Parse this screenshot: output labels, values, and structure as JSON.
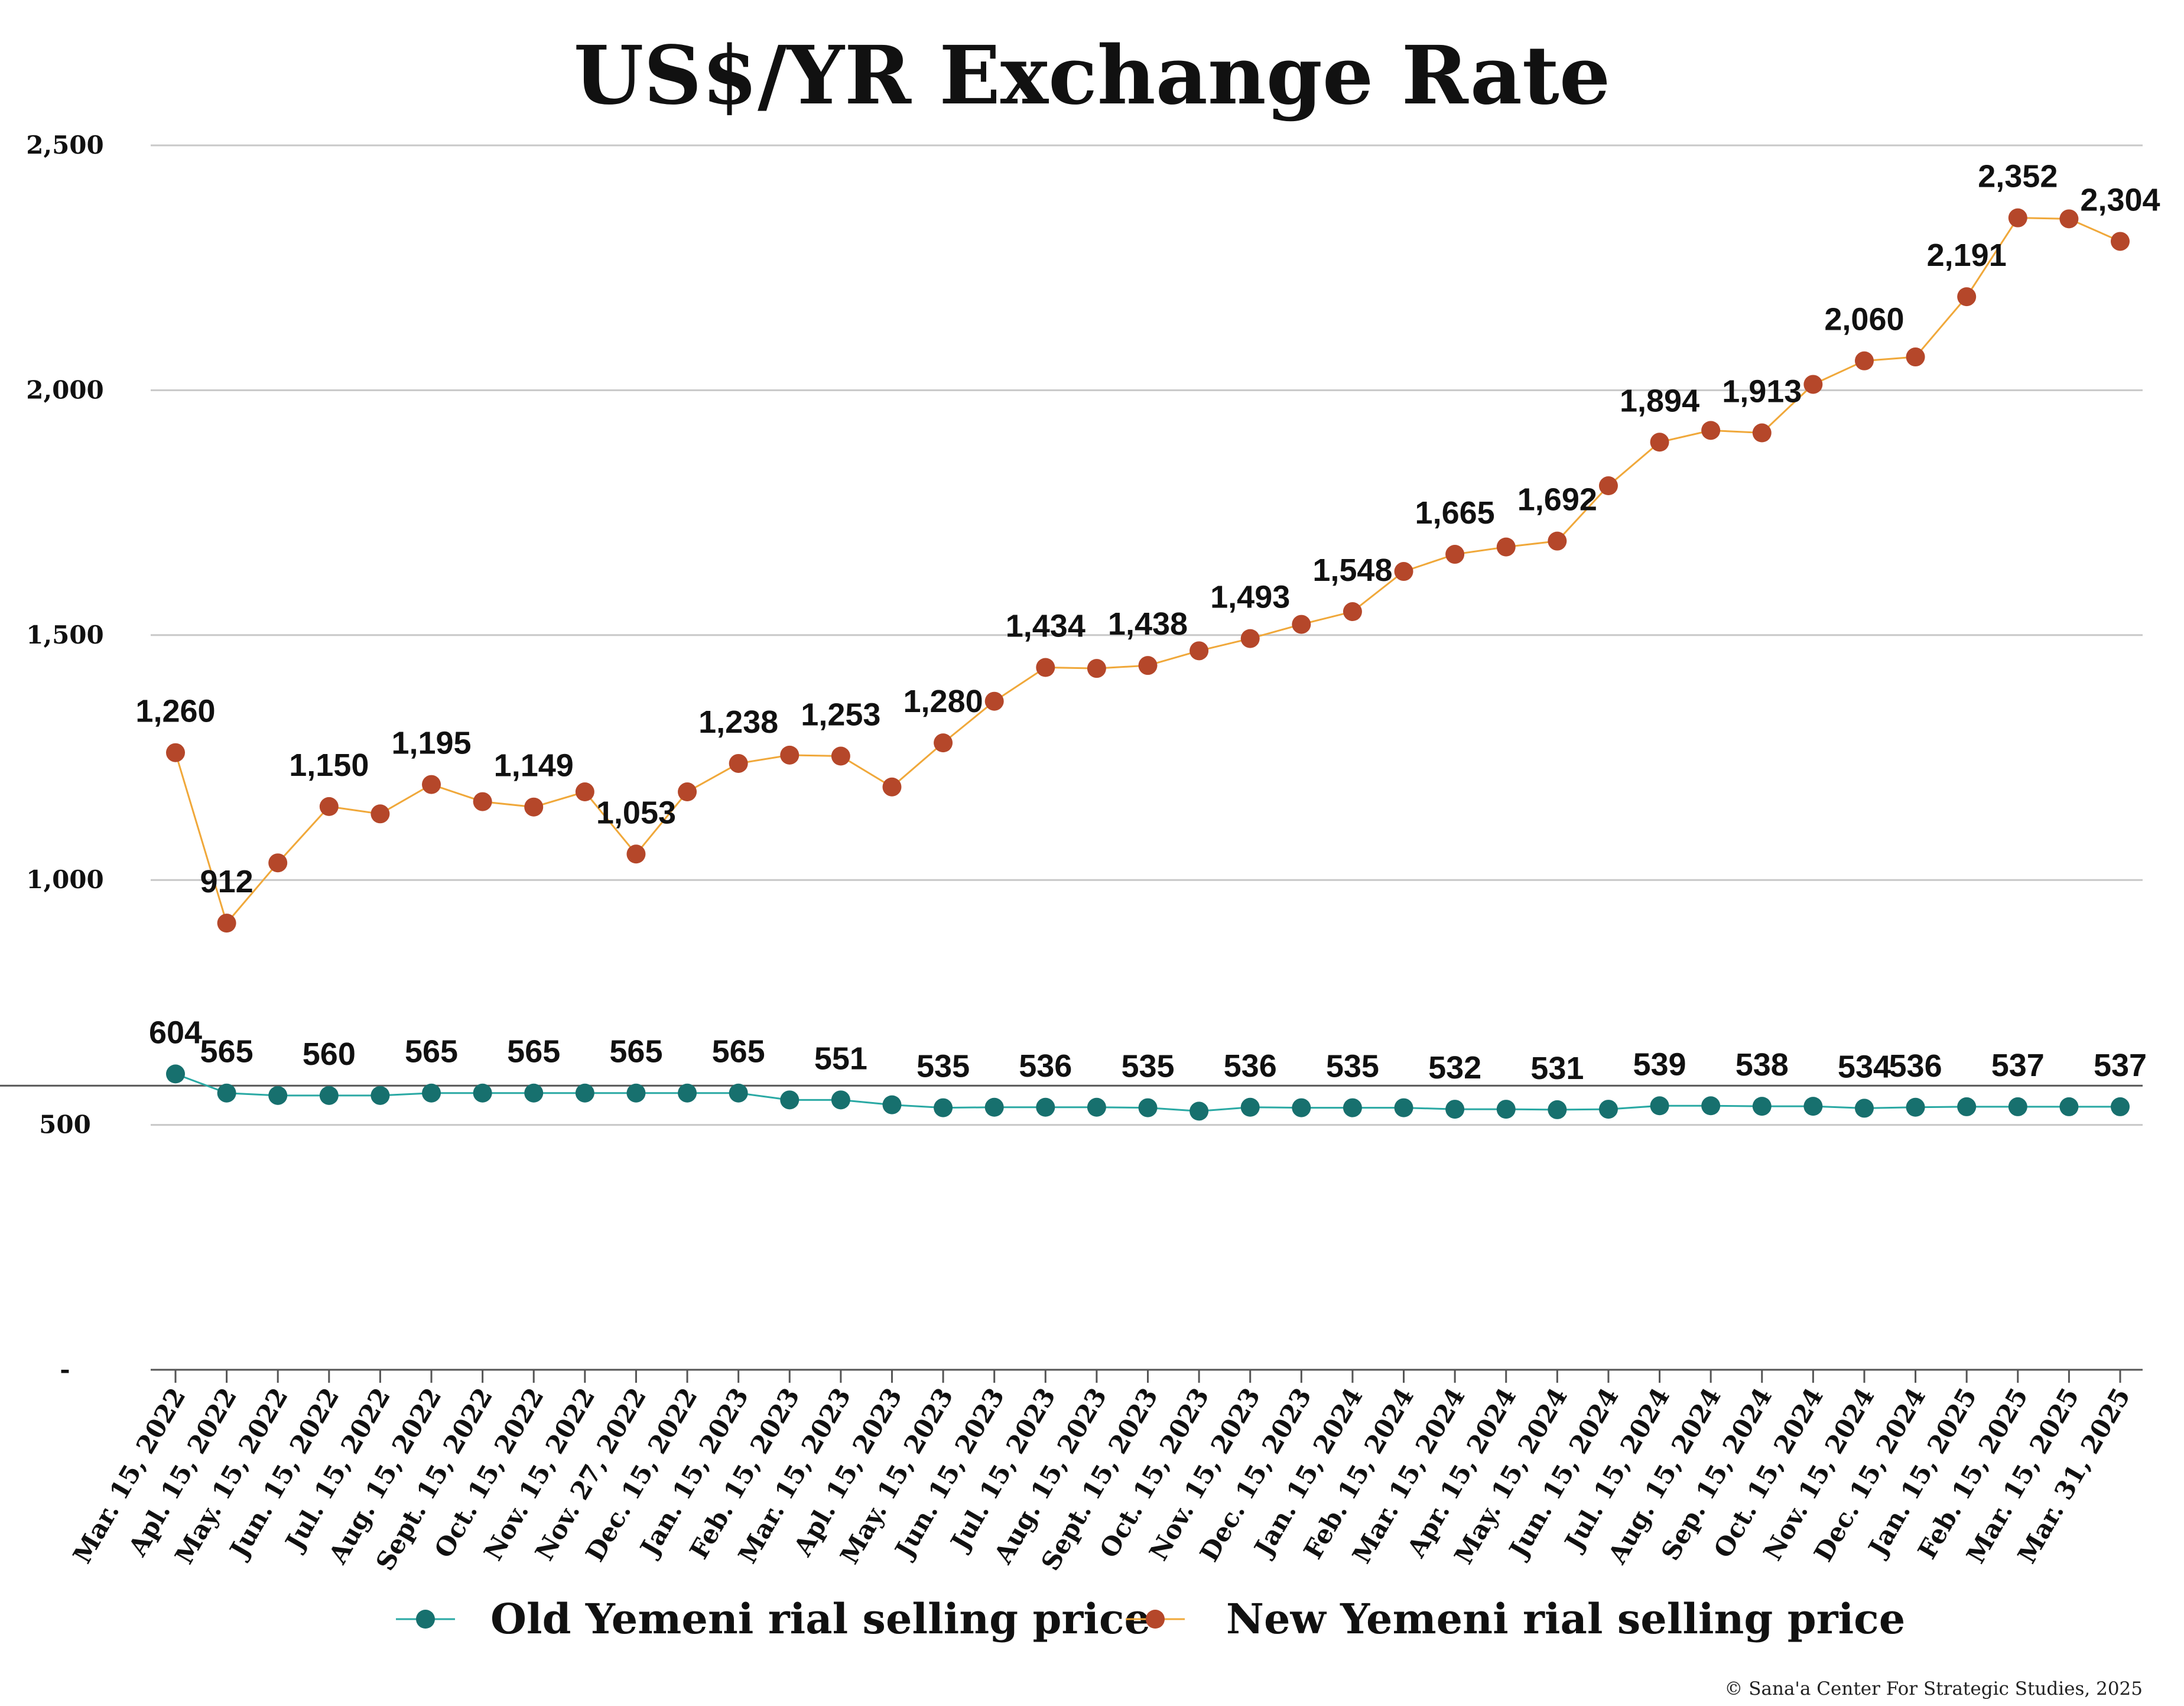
{
  "chart_data": {
    "type": "line",
    "title": "US$/YR Exchange Rate",
    "xlabel": "",
    "ylabel": "",
    "ylim": [
      0,
      2500
    ],
    "y_ticks": [
      {
        "value": 0,
        "label": "-"
      },
      {
        "value": 500,
        "label": "500"
      },
      {
        "value": 1000,
        "label": "1,000"
      },
      {
        "value": 1500,
        "label": "1,500"
      },
      {
        "value": 2000,
        "label": "2,000"
      },
      {
        "value": 2500,
        "label": "2,500"
      }
    ],
    "grid": true,
    "legend_position": "bottom",
    "reference_line": 580,
    "categories": [
      "Mar. 15, 2022",
      "Apl. 15, 2022",
      "May. 15, 2022",
      "Jun. 15, 2022",
      "Jul. 15, 2022",
      "Aug. 15, 2022",
      "Sept. 15, 2022",
      "Oct. 15, 2022",
      "Nov. 15, 2022",
      "Nov. 27, 2022",
      "Dec. 15, 2022",
      "Jan. 15, 2023",
      "Feb. 15, 2023",
      "Mar. 15, 2023",
      "Apl. 15, 2023",
      "May. 15, 2023",
      "Jun. 15, 2023",
      "Jul. 15, 2023",
      "Aug. 15, 2023",
      "Sept. 15, 2023",
      "Oct. 15, 2023",
      "Nov. 15, 2023",
      "Dec. 15, 2023",
      "Jan. 15, 2024",
      "Feb. 15, 2024",
      "Mar. 15, 2024",
      "Apr. 15, 2024",
      "May. 15, 2024",
      "Jun. 15, 2024",
      "Jul. 15, 2024",
      "Aug. 15, 2024",
      "Sep. 15, 2024",
      "Oct. 15, 2024",
      "Nov. 15, 2024",
      "Dec. 15, 2024",
      "Jan. 15, 2025",
      "Feb. 15, 2025",
      "Mar. 15, 2025",
      "Mar. 31, 2025"
    ],
    "series": [
      {
        "name": "Old Yemeni rial selling price",
        "color": "#17706e",
        "line_color": "#2aa9a4",
        "values": [
          604,
          565,
          560,
          560,
          560,
          565,
          565,
          565,
          565,
          565,
          565,
          565,
          551,
          551,
          541,
          535,
          536,
          536,
          536,
          535,
          528,
          536,
          535,
          535,
          535,
          532,
          532,
          531,
          532,
          539,
          539,
          538,
          538,
          534,
          536,
          537,
          537,
          537,
          537
        ],
        "data_labels": [
          {
            "index": 0,
            "text": "604"
          },
          {
            "index": 1,
            "text": "565"
          },
          {
            "index": 3,
            "text": "560"
          },
          {
            "index": 5,
            "text": "565"
          },
          {
            "index": 7,
            "text": "565"
          },
          {
            "index": 9,
            "text": "565"
          },
          {
            "index": 11,
            "text": "565"
          },
          {
            "index": 13,
            "text": "551"
          },
          {
            "index": 15,
            "text": "535"
          },
          {
            "index": 17,
            "text": "536"
          },
          {
            "index": 19,
            "text": "535"
          },
          {
            "index": 21,
            "text": "536"
          },
          {
            "index": 23,
            "text": "535"
          },
          {
            "index": 25,
            "text": "532"
          },
          {
            "index": 27,
            "text": "531"
          },
          {
            "index": 29,
            "text": "539"
          },
          {
            "index": 31,
            "text": "538"
          },
          {
            "index": 33,
            "text": "534"
          },
          {
            "index": 34,
            "text": "536"
          },
          {
            "index": 36,
            "text": "537"
          },
          {
            "index": 38,
            "text": "537"
          }
        ]
      },
      {
        "name": "New Yemeni rial selling price",
        "color": "#b5472a",
        "line_color": "#f0a83a",
        "values": [
          1260,
          912,
          1035,
          1150,
          1135,
          1195,
          1160,
          1149,
          1180,
          1053,
          1180,
          1238,
          1255,
          1253,
          1190,
          1280,
          1365,
          1434,
          1432,
          1438,
          1468,
          1493,
          1522,
          1548,
          1630,
          1665,
          1680,
          1692,
          1805,
          1894,
          1918,
          1913,
          2012,
          2060,
          2068,
          2191,
          2352,
          2350,
          2304
        ],
        "data_labels": [
          {
            "index": 0,
            "text": "1,260"
          },
          {
            "index": 1,
            "text": "912"
          },
          {
            "index": 3,
            "text": "1,150"
          },
          {
            "index": 5,
            "text": "1,195"
          },
          {
            "index": 7,
            "text": "1,149"
          },
          {
            "index": 9,
            "text": "1,053"
          },
          {
            "index": 11,
            "text": "1,238"
          },
          {
            "index": 13,
            "text": "1,253"
          },
          {
            "index": 15,
            "text": "1,280"
          },
          {
            "index": 17,
            "text": "1,434"
          },
          {
            "index": 19,
            "text": "1,438"
          },
          {
            "index": 21,
            "text": "1,493"
          },
          {
            "index": 23,
            "text": "1,548"
          },
          {
            "index": 25,
            "text": "1,665"
          },
          {
            "index": 27,
            "text": "1,692"
          },
          {
            "index": 29,
            "text": "1,894"
          },
          {
            "index": 31,
            "text": "1,913"
          },
          {
            "index": 33,
            "text": "2,060"
          },
          {
            "index": 35,
            "text": "2,191"
          },
          {
            "index": 36,
            "text": "2,352"
          },
          {
            "index": 38,
            "text": "2,304"
          }
        ]
      }
    ]
  },
  "credit": "© Sana'a Center For Strategic Studies, 2025"
}
